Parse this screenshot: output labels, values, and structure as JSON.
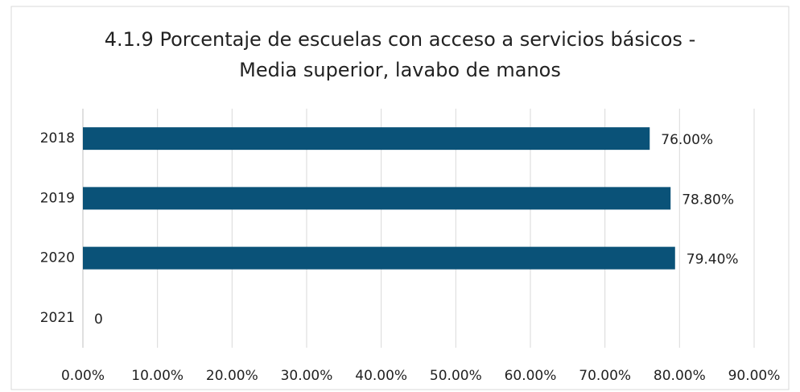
{
  "chart_data": {
    "type": "bar",
    "orientation": "horizontal",
    "title": "4.1.9 Porcentaje de escuelas con acceso a servicios básicos - Media superior, lavabo de manos",
    "categories": [
      "2018",
      "2019",
      "2020",
      "2021"
    ],
    "values": [
      76,
      78.8,
      79.4,
      0
    ],
    "value_labels": [
      "76.00%",
      "78.80%",
      "79.40%",
      "0"
    ],
    "color": "#0a5278",
    "xlim": [
      0,
      90
    ],
    "xticks": [
      {
        "value": 0,
        "label": "0.00%"
      },
      {
        "value": 10,
        "label": "10.00%"
      },
      {
        "value": 20,
        "label": "20.00%"
      },
      {
        "value": 30,
        "label": "30.00%"
      },
      {
        "value": 40,
        "label": "40.00%"
      },
      {
        "value": 50,
        "label": "50.00%"
      },
      {
        "value": 60,
        "label": "60.00%"
      },
      {
        "value": 70,
        "label": "70.00%"
      },
      {
        "value": 80,
        "label": "80.00%"
      },
      {
        "value": 90,
        "label": "90.00%"
      }
    ],
    "grid": true
  }
}
